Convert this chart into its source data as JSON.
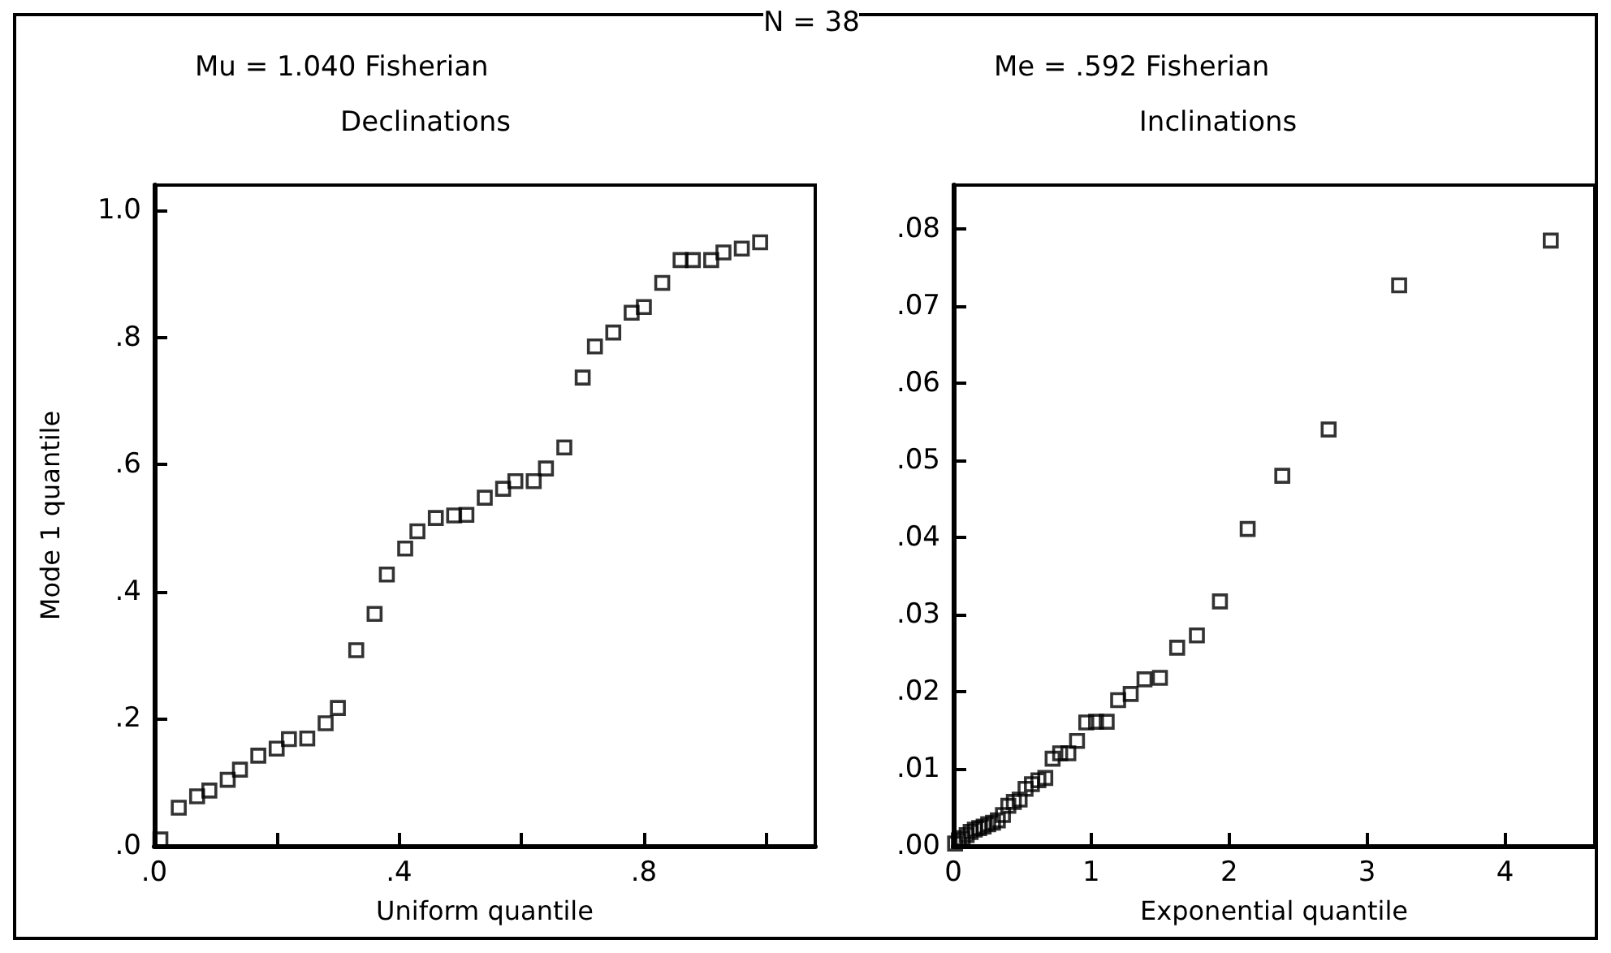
{
  "chart_data": [
    {
      "type": "scatter",
      "title": "Declinations",
      "subtitle": "Mu = 1.040 Fisherian",
      "xlabel": "Uniform quantile",
      "ylabel": "Mode 1 quantile",
      "annotations": [
        "N = 38"
      ],
      "marker": "square",
      "x": [
        0.01,
        0.04,
        0.07,
        0.09,
        0.12,
        0.14,
        0.17,
        0.2,
        0.22,
        0.25,
        0.28,
        0.3,
        0.33,
        0.36,
        0.38,
        0.41,
        0.43,
        0.46,
        0.49,
        0.51,
        0.54,
        0.57,
        0.59,
        0.62,
        0.64,
        0.67,
        0.7,
        0.72,
        0.75,
        0.78,
        0.8,
        0.83,
        0.86,
        0.88,
        0.91,
        0.93,
        0.96,
        0.99
      ],
      "series": [
        {
          "color": "#000000",
          "values": [
            0.01,
            0.06,
            0.078,
            0.087,
            0.104,
            0.12,
            0.142,
            0.153,
            0.168,
            0.169,
            0.193,
            0.217,
            0.308,
            0.365,
            0.427,
            0.468,
            0.495,
            0.516,
            0.52,
            0.521,
            0.548,
            0.562,
            0.574,
            0.574,
            0.594,
            0.627,
            0.737,
            0.786,
            0.808,
            0.839,
            0.848,
            0.886,
            0.922,
            0.922,
            0.922,
            0.934,
            0.94,
            0.95
          ]
        }
      ],
      "xlim": [
        0,
        1.08
      ],
      "xticks": [
        {
          "value": 0,
          "label": ".0"
        },
        {
          "value": 0.2,
          "label": null
        },
        {
          "value": 0.4,
          "label": ".4"
        },
        {
          "value": 0.6,
          "label": null
        },
        {
          "value": 0.8,
          "label": ".8"
        },
        {
          "value": 1.0,
          "label": null
        }
      ],
      "ylim": [
        0,
        1.04
      ],
      "yticks": [
        {
          "value": 0,
          "label": ".0"
        },
        {
          "value": 0.2,
          "label": ".2"
        },
        {
          "value": 0.4,
          "label": ".4"
        },
        {
          "value": 0.6,
          "label": ".6"
        },
        {
          "value": 0.8,
          "label": ".8"
        },
        {
          "value": 1.0,
          "label": "1.0"
        }
      ]
    },
    {
      "type": "scatter",
      "title": "Inclinations",
      "subtitle": "Me = .592 Fisherian",
      "xlabel": "Exponential quantile",
      "marker": "square",
      "x": [
        0.013,
        0.04,
        0.068,
        0.097,
        0.126,
        0.156,
        0.188,
        0.22,
        0.253,
        0.288,
        0.323,
        0.36,
        0.399,
        0.439,
        0.481,
        0.524,
        0.57,
        0.617,
        0.667,
        0.72,
        0.775,
        0.834,
        0.897,
        0.964,
        1.035,
        1.112,
        1.195,
        1.286,
        1.386,
        1.498,
        1.623,
        1.766,
        1.933,
        2.134,
        2.385,
        2.721,
        3.232,
        4.331
      ],
      "series": [
        {
          "color": "#000000",
          "values": [
            0.0003,
            0.0007,
            0.001,
            0.0014,
            0.0018,
            0.0021,
            0.0023,
            0.0025,
            0.0028,
            0.003,
            0.0033,
            0.004,
            0.0052,
            0.0057,
            0.006,
            0.0074,
            0.008,
            0.0085,
            0.0088,
            0.0113,
            0.012,
            0.012,
            0.0136,
            0.016,
            0.0161,
            0.0161,
            0.0189,
            0.0197,
            0.0216,
            0.0218,
            0.0257,
            0.0273,
            0.0317,
            0.0411,
            0.048,
            0.054,
            0.0727,
            0.0785
          ]
        }
      ],
      "xlim": [
        0,
        4.65
      ],
      "xticks": [
        0,
        1,
        2,
        3,
        4
      ],
      "ylim": [
        0,
        0.0857
      ],
      "yticks": [
        {
          "value": 0,
          "label": ".00"
        },
        {
          "value": 0.01,
          "label": ".01"
        },
        {
          "value": 0.02,
          "label": ".02"
        },
        {
          "value": 0.03,
          "label": ".03"
        },
        {
          "value": 0.04,
          "label": ".04"
        },
        {
          "value": 0.05,
          "label": ".05"
        },
        {
          "value": 0.06,
          "label": ".06"
        },
        {
          "value": 0.07,
          "label": ".07"
        },
        {
          "value": 0.08,
          "label": ".08"
        }
      ]
    }
  ]
}
